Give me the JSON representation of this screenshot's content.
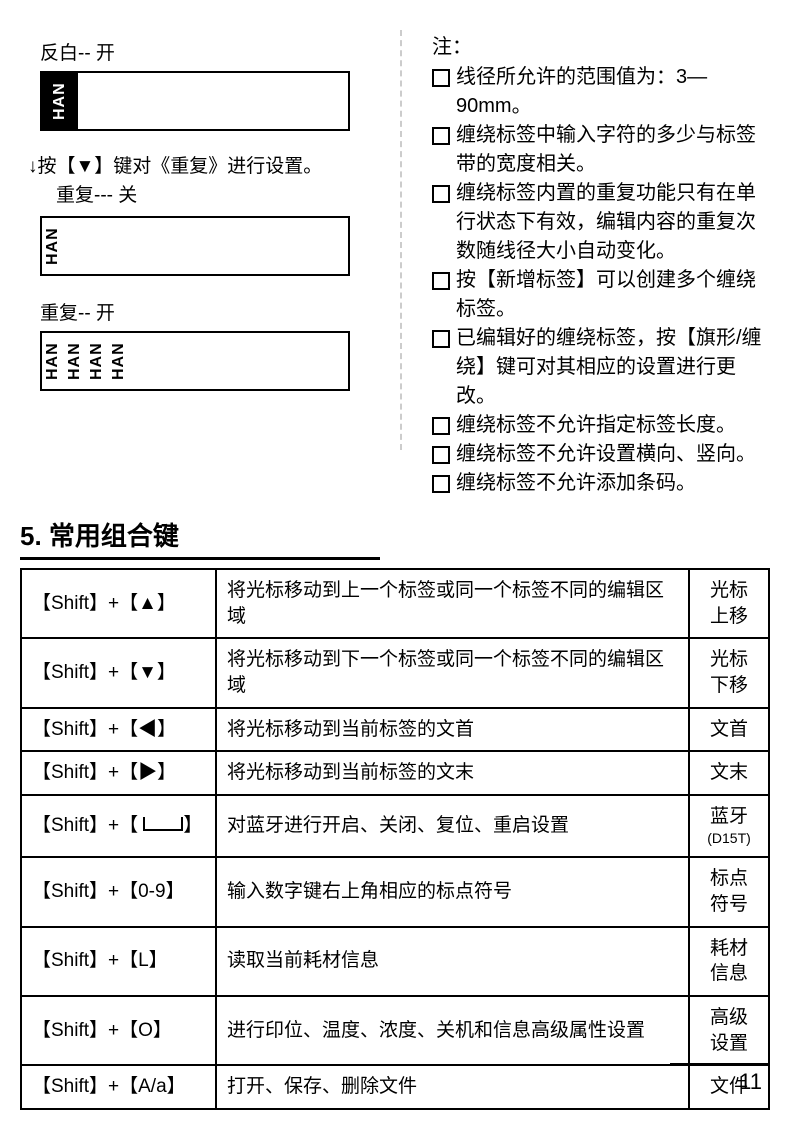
{
  "left": {
    "caption1": "反白-- 开",
    "box1_text": "HAN",
    "step_line1": "↓按【▼】键对《重复》进行设置。",
    "step_line2": "重复--- 关",
    "box2_text": "HAN",
    "caption3": "重复-- 开",
    "box3_texts": [
      "HAN",
      "HAN",
      "HAN",
      "HAN"
    ]
  },
  "right": {
    "title": "注：",
    "notes": [
      "线径所允许的范围值为：3—90mm。",
      "缠绕标签中输入字符的多少与标签带的宽度相关。",
      "缠绕标签内置的重复功能只有在单行状态下有效，编辑内容的重复次数随线径大小自动变化。",
      "按【新增标签】可以创建多个缠绕标签。",
      "已编辑好的缠绕标签，按【旗形/缠绕】键可对其相应的设置进行更改。",
      "缠绕标签不允许指定标签长度。",
      "缠绕标签不允许设置横向、竖向。",
      "缠绕标签不允许添加条码。"
    ]
  },
  "section_title": "5. 常用组合键",
  "table": [
    {
      "keys": "【Shift】+【▲】",
      "desc": "将光标移动到上一个标签或同一个标签不同的编辑区域",
      "name": "光标\n上移"
    },
    {
      "keys": "【Shift】+【▼】",
      "desc": "将光标移动到下一个标签或同一个标签不同的编辑区域",
      "name": "光标\n下移"
    },
    {
      "keys": "【Shift】+【◀】",
      "desc": "将光标移动到当前标签的文首",
      "name": "文首"
    },
    {
      "keys": "【Shift】+【▶】",
      "desc": "将光标移动到当前标签的文末",
      "name": "文末"
    },
    {
      "keys": "SPACE",
      "desc": "对蓝牙进行开启、关闭、复位、重启设置",
      "name": "蓝牙",
      "sub": "(D15T)"
    },
    {
      "keys": "【Shift】+【0-9】",
      "desc": "输入数字键右上角相应的标点符号",
      "name": "标点\n符号"
    },
    {
      "keys": "【Shift】+【L】",
      "desc": "读取当前耗材信息",
      "name": "耗材\n信息"
    },
    {
      "keys": "【Shift】+【O】",
      "desc": "进行印位、温度、浓度、关机和信息高级属性设置",
      "name": "高级\n设置"
    },
    {
      "keys": "【Shift】+【A/a】",
      "desc": "打开、保存、删除文件",
      "name": "文件"
    }
  ],
  "page_number": "11"
}
